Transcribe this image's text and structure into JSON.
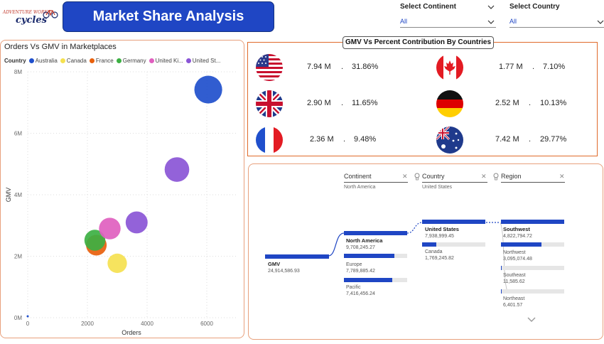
{
  "brand": {
    "line1": "ADVENTURE WORKS",
    "line2": "cycles"
  },
  "title": "Market Share Analysis",
  "slicers": [
    {
      "label": "Select Continent",
      "value": "All"
    },
    {
      "label": "Select Country",
      "value": "All"
    }
  ],
  "scatter": {
    "title": "Orders Vs GMV in Marketplaces",
    "legend_key": "Country",
    "legend": [
      "Australia",
      "Canada",
      "France",
      "Germany",
      "United Ki...",
      "United St..."
    ]
  },
  "chart_data": {
    "type": "scatter",
    "title": "Orders Vs GMV in Marketplaces",
    "xlabel": "Orders",
    "ylabel": "GMV",
    "xlim": [
      0,
      7000
    ],
    "ylim": [
      0,
      8000000
    ],
    "x_ticks": [
      "0",
      "2000",
      "4000",
      "6000"
    ],
    "y_ticks": [
      "0M",
      "2M",
      "4M",
      "6M",
      "8M"
    ],
    "series": [
      {
        "name": "Australia",
        "color": "#1f4fcc",
        "x": 6050,
        "y": 7420000
      },
      {
        "name": "Canada",
        "color": "#f5e150",
        "x": 3000,
        "y": 1770000
      },
      {
        "name": "France",
        "color": "#e8600c",
        "x": 2300,
        "y": 2360000
      },
      {
        "name": "Germany",
        "color": "#3cb043",
        "x": 2250,
        "y": 2520000
      },
      {
        "name": "United Kingdom",
        "color": "#e05fbf",
        "x": 2750,
        "y": 2900000
      },
      {
        "name": "United States",
        "color": "#8a55d6",
        "x": 5000,
        "y": 4820000
      },
      {
        "name": "United States",
        "color": "#8a55d6",
        "x": 3650,
        "y": 3100000
      }
    ]
  },
  "gmv_title": "GMV Vs Percent Contribution By Countries",
  "countries": [
    {
      "flag": "us-flag-icon",
      "gmv": "7.94 M",
      "sep": ".",
      "pct": "31.86%"
    },
    {
      "flag": "canada-flag-icon",
      "gmv": "1.77 M",
      "sep": ".",
      "pct": "7.10%"
    },
    {
      "flag": "uk-flag-icon",
      "gmv": "2.90 M",
      "sep": ".",
      "pct": "11.65%"
    },
    {
      "flag": "germany-flag-icon",
      "gmv": "2.52 M",
      "sep": ".",
      "pct": "10.13%"
    },
    {
      "flag": "france-flag-icon",
      "gmv": "2.36 M",
      "sep": ".",
      "pct": "9.48%"
    },
    {
      "flag": "australia-flag-icon",
      "gmv": "7.42 M",
      "sep": ".",
      "pct": "29.77%"
    }
  ],
  "decomp": {
    "levels": [
      {
        "name": "Continent",
        "filter": "North America"
      },
      {
        "name": "Country",
        "filter": "United States"
      },
      {
        "name": "Region",
        "filter": ""
      }
    ],
    "root": {
      "label": "GMV",
      "value": "24,914,586.93"
    },
    "continents": [
      {
        "label": "North America",
        "value": "9,708,245.27",
        "frac": 1.0
      },
      {
        "label": "Europe",
        "value": "7,789,885.42",
        "frac": 0.8
      },
      {
        "label": "Pacific",
        "value": "7,416,456.24",
        "frac": 0.76
      }
    ],
    "countries": [
      {
        "label": "United States",
        "value": "7,938,999.45",
        "frac": 1.0
      },
      {
        "label": "Canada",
        "value": "1,769,245.82",
        "frac": 0.22
      }
    ],
    "regions": [
      {
        "label": "Southwest",
        "value": "4,822,794.72",
        "frac": 1.0
      },
      {
        "label": "Northwest",
        "value": "3,095,074.48",
        "frac": 0.64
      },
      {
        "label": "Southeast",
        "value": "11,585.62",
        "frac": 0.01
      },
      {
        "label": "Northeast",
        "value": "6,401.57",
        "frac": 0.01
      }
    ]
  }
}
